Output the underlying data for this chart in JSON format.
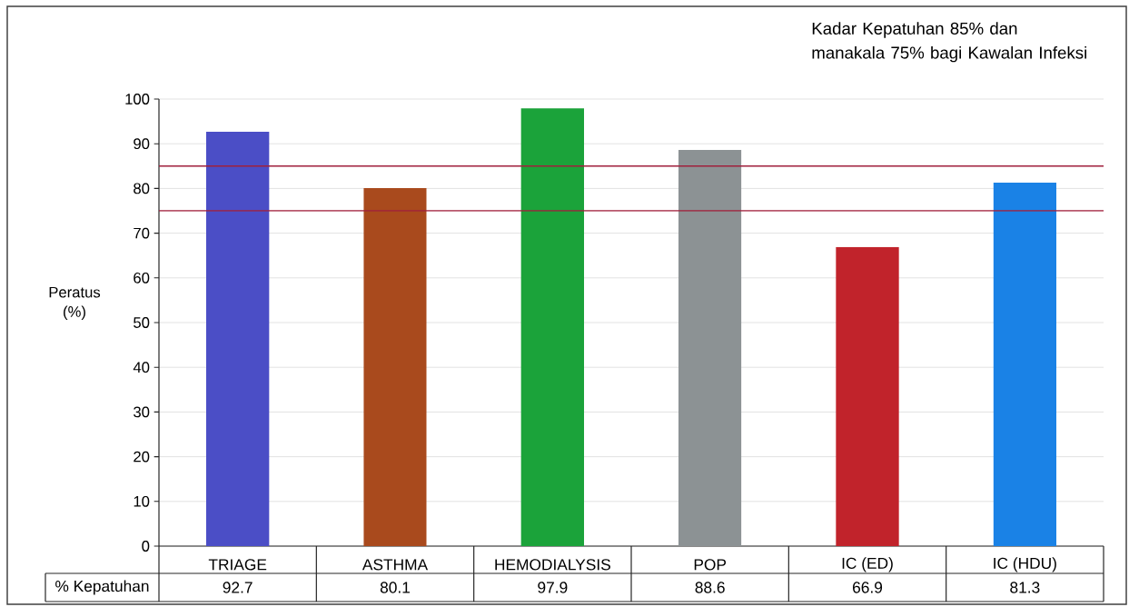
{
  "chart_data": {
    "type": "bar",
    "categories": [
      "TRIAGE",
      "ASTHMA",
      "HEMODIALYSIS",
      "POP",
      "IC (ED)",
      "IC (HDU)"
    ],
    "series": [
      {
        "name": "% Kepatuhan",
        "colors": [
          "#4b4ec6",
          "#a94a1d",
          "#1ba33a",
          "#8c9294",
          "#c1232b",
          "#1a82e6"
        ],
        "values": [
          92.7,
          80.1,
          97.9,
          88.6,
          66.9,
          81.3
        ]
      }
    ],
    "ylabel": "Peratus (%)",
    "ylim": [
      0,
      100
    ],
    "yticks": [
      0,
      10,
      20,
      30,
      40,
      50,
      60,
      70,
      80,
      90,
      100
    ],
    "grid": "y",
    "data_labels": true,
    "ref_lines": [
      {
        "axis": "y",
        "value": 85,
        "color": "#a0203c"
      },
      {
        "axis": "y",
        "value": 75,
        "color": "#a0203c"
      }
    ],
    "annotations": [
      "Kadar Kepatuhan 85% dan manakala 75% bagi Kawalan Infeksi"
    ]
  }
}
